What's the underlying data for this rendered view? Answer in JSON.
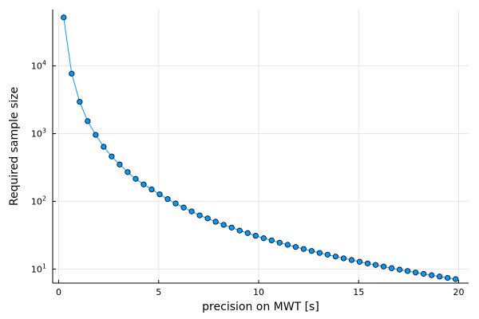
{
  "chart_data": {
    "type": "line",
    "title": "",
    "xlabel": "precision on MWT [s]",
    "ylabel": "Required sample size",
    "xlim": [
      -0.3,
      20.5
    ],
    "ylim": [
      6.2,
      68000
    ],
    "yscale": "log",
    "grid": true,
    "legend": "none",
    "x_ticks": [
      0,
      5,
      10,
      15,
      20
    ],
    "y_ticks": [
      {
        "value": 10,
        "base": "10",
        "exp": "1"
      },
      {
        "value": 100,
        "base": "10",
        "exp": "2"
      },
      {
        "value": 1000,
        "base": "10",
        "exp": "3"
      },
      {
        "value": 10000,
        "base": "10",
        "exp": "4"
      }
    ],
    "series": [
      {
        "color": "#009AFA",
        "marker": "circle",
        "x": [
          0.25,
          0.65,
          1.05,
          1.45,
          1.85,
          2.25,
          2.65,
          3.05,
          3.45,
          3.85,
          4.25,
          4.65,
          5.05,
          5.45,
          5.85,
          6.25,
          6.65,
          7.05,
          7.45,
          7.85,
          8.25,
          8.65,
          9.05,
          9.45,
          9.85,
          10.25,
          10.65,
          11.05,
          11.45,
          11.85,
          12.25,
          12.65,
          13.05,
          13.45,
          13.85,
          14.25,
          14.65,
          15.05,
          15.45,
          15.85,
          16.25,
          16.65,
          17.05,
          17.45,
          17.85,
          18.25,
          18.65,
          19.05,
          19.45,
          19.85
        ],
        "values": [
          52000,
          7700,
          2950,
          1530,
          960,
          640,
          460,
          350,
          270,
          215,
          178,
          150,
          127,
          108,
          93,
          81,
          71,
          62,
          56,
          50,
          45,
          41,
          37,
          34,
          31,
          28.5,
          26.5,
          24.5,
          22.8,
          21.2,
          19.8,
          18.5,
          17.3,
          16.3,
          15.3,
          14.4,
          13.6,
          12.8,
          12.1,
          11.5,
          10.9,
          10.3,
          9.8,
          9.35,
          8.9,
          8.5,
          8.1,
          7.75,
          7.4,
          7.1
        ]
      }
    ]
  }
}
